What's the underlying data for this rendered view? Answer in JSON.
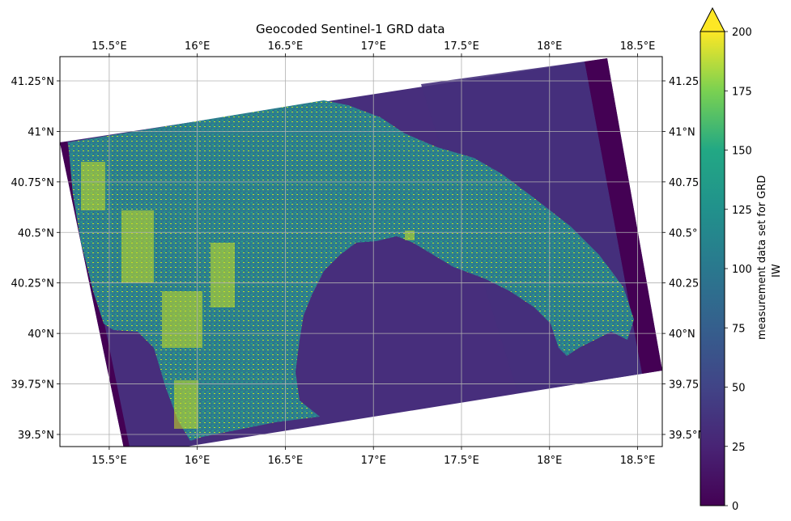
{
  "title": "Geocoded Sentinel-1 GRD data",
  "map": {
    "lon_range": [
      15.22,
      18.64
    ],
    "lat_range": [
      39.44,
      41.37
    ],
    "lon_ticks": [
      {
        "value": 15.5,
        "label": "15.5°E"
      },
      {
        "value": 16.0,
        "label": "16°E"
      },
      {
        "value": 16.5,
        "label": "16.5°E"
      },
      {
        "value": 17.0,
        "label": "17°E"
      },
      {
        "value": 17.5,
        "label": "17.5°E"
      },
      {
        "value": 18.0,
        "label": "18°E"
      },
      {
        "value": 18.5,
        "label": "18.5°E"
      }
    ],
    "lat_ticks": [
      {
        "value": 41.25,
        "label": "41.25°N"
      },
      {
        "value": 41.0,
        "label": "41°N"
      },
      {
        "value": 40.75,
        "label": "40.75°N"
      },
      {
        "value": 40.5,
        "label": "40.5°N"
      },
      {
        "value": 40.25,
        "label": "40.25°N"
      },
      {
        "value": 40.0,
        "label": "40°N"
      },
      {
        "value": 39.75,
        "label": "39.75°N"
      },
      {
        "value": 39.5,
        "label": "39.5°N"
      }
    ],
    "right_lat_labels": [
      "41.25",
      "41°N",
      "40.75",
      "40.5°",
      "40.25",
      "40°N",
      "39.75",
      "39.5°N"
    ],
    "grid": true,
    "colormap": "viridis",
    "colors": {
      "land": "#2c7f8e",
      "sea": "#472e7c",
      "nodata": "#440154",
      "bright": "#cde11d",
      "mid": "#21918c"
    }
  },
  "colorbar": {
    "label_line1": "measurement data set for GRD",
    "label_line2": "IW",
    "range": [
      0,
      200
    ],
    "extend": "max",
    "ticks": [
      {
        "value": 0,
        "label": "0"
      },
      {
        "value": 25,
        "label": "25"
      },
      {
        "value": 50,
        "label": "50"
      },
      {
        "value": 75,
        "label": "75"
      },
      {
        "value": 100,
        "label": "100"
      },
      {
        "value": 125,
        "label": "125"
      },
      {
        "value": 150,
        "label": "150"
      },
      {
        "value": 175,
        "label": "175"
      },
      {
        "value": 200,
        "label": "200"
      }
    ]
  }
}
